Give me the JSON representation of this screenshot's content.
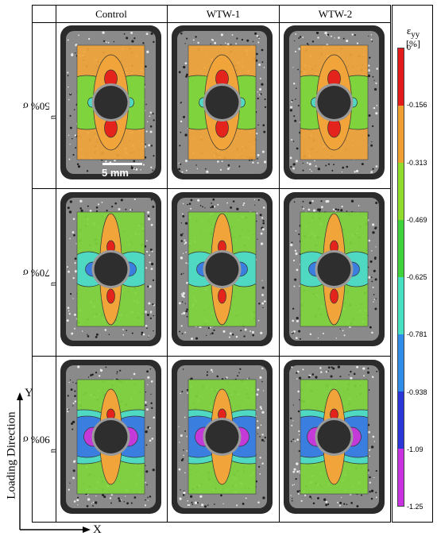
{
  "columns": [
    "Control",
    "WTW-1",
    "WTW-2"
  ],
  "rows": [
    {
      "base": "50% σ",
      "sub": "n",
      "level": 50
    },
    {
      "base": "70% σ",
      "sub": "n",
      "level": 70
    },
    {
      "base": "90% σ",
      "sub": "n",
      "level": 90
    }
  ],
  "scale_bar": {
    "label": "5 mm"
  },
  "legend": {
    "symbol": "ε",
    "subscript": "yy",
    "unit": "[%]",
    "ticks": [
      "0",
      "-0.156",
      "-0.313",
      "-0.469",
      "-0.625",
      "-0.781",
      "-0.938",
      "-1.09",
      "-1.25"
    ],
    "band_colors": [
      "#e21a1a",
      "#f0a030",
      "#8fdc2a",
      "#3fd23a",
      "#44e0c0",
      "#2f8ce8",
      "#2a36d8",
      "#c832e0"
    ]
  },
  "axes": {
    "loading_direction": "Loading Direction",
    "y": "Y",
    "x": "X"
  },
  "colors": {
    "red": "#e5231d",
    "orange": "#f0a43a",
    "green": "#7fd33c",
    "cyan": "#4fd9c2",
    "blue": "#3a7fe0",
    "purple": "#3a3ad0",
    "magenta": "#c43ad8",
    "hole": "#2e2e2e"
  }
}
